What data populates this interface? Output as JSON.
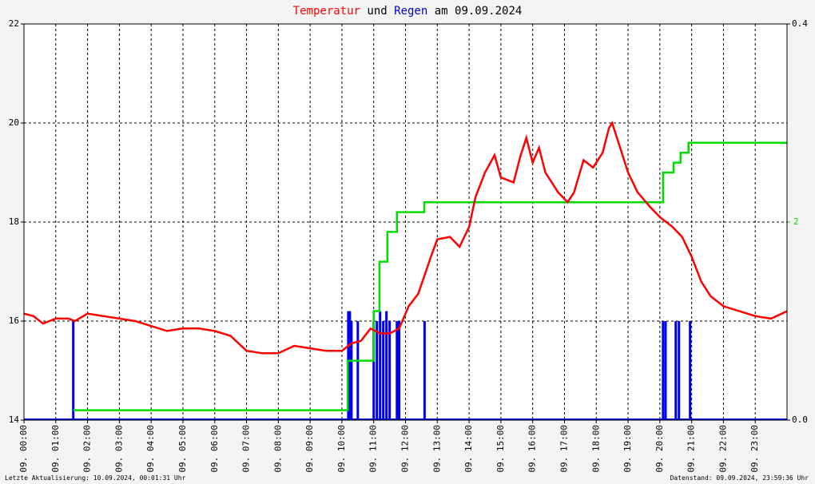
{
  "chart_data": {
    "type": "line",
    "title_middle": "und",
    "title_end": "am 09.09.2024",
    "footer_left": "Letzte Aktualisierung: 10.09.2024, 00:01:31 Uhr",
    "footer_right": "Datenstand: 09.09.2024, 23:59:36 Uhr",
    "xlim": [
      0,
      24
    ],
    "xticks": [
      {
        "value": 0,
        "label": "09. 00:00"
      },
      {
        "value": 1,
        "label": "09. 01:00"
      },
      {
        "value": 2,
        "label": "09. 02:00"
      },
      {
        "value": 3,
        "label": "09. 03:00"
      },
      {
        "value": 4,
        "label": "09. 04:00"
      },
      {
        "value": 5,
        "label": "09. 05:00"
      },
      {
        "value": 6,
        "label": "09. 06:00"
      },
      {
        "value": 7,
        "label": "09. 07:00"
      },
      {
        "value": 8,
        "label": "09. 08:00"
      },
      {
        "value": 9,
        "label": "09. 09:00"
      },
      {
        "value": 10,
        "label": "09. 10:00"
      },
      {
        "value": 11,
        "label": "09. 11:00"
      },
      {
        "value": 12,
        "label": "09. 12:00"
      },
      {
        "value": 13,
        "label": "09. 13:00"
      },
      {
        "value": 14,
        "label": "09. 14:00"
      },
      {
        "value": 15,
        "label": "09. 15:00"
      },
      {
        "value": 16,
        "label": "09. 16:00"
      },
      {
        "value": 17,
        "label": "09. 17:00"
      },
      {
        "value": 18,
        "label": "09. 18:00"
      },
      {
        "value": 19,
        "label": "09. 19:00"
      },
      {
        "value": 20,
        "label": "09. 20:00"
      },
      {
        "value": 21,
        "label": "09. 21:00"
      },
      {
        "value": 22,
        "label": "09. 22:00"
      },
      {
        "value": 23,
        "label": "09. 23:00"
      }
    ],
    "ylim": [
      14,
      22
    ],
    "yticks": [
      14,
      16,
      18,
      20,
      22
    ],
    "y2lim": [
      0,
      0.4
    ],
    "y2ticks": [
      {
        "value": 0,
        "label": "0.0"
      },
      0.4
    ],
    "y3lim": [
      0,
      4
    ],
    "y3ticks": [
      2
    ],
    "y3color": "#00dd00",
    "grid": true,
    "series": [
      {
        "name": "Temperatur",
        "color": "#ff0000",
        "kind": "line",
        "axis": "y",
        "x": [
          0,
          0.3,
          0.6,
          1.0,
          1.4,
          1.6,
          2.0,
          2.5,
          3.0,
          3.5,
          4.0,
          4.5,
          5.0,
          5.5,
          6.0,
          6.5,
          7.0,
          7.5,
          8.0,
          8.5,
          9.0,
          9.5,
          10.0,
          10.3,
          10.6,
          10.9,
          11.2,
          11.5,
          11.8,
          12.1,
          12.4,
          12.8,
          13.0,
          13.4,
          13.7,
          14.0,
          14.2,
          14.5,
          14.8,
          15.0,
          15.4,
          15.6,
          15.8,
          16.0,
          16.2,
          16.4,
          16.8,
          17.1,
          17.3,
          17.6,
          17.9,
          18.2,
          18.4,
          18.5,
          18.7,
          19.0,
          19.3,
          19.7,
          20.0,
          20.4,
          20.7,
          21.0,
          21.3,
          21.6,
          22.0,
          22.5,
          23.0,
          23.5,
          24.0
        ],
        "values": [
          16.15,
          16.1,
          15.95,
          16.05,
          16.05,
          16.0,
          16.15,
          16.1,
          16.05,
          16.0,
          15.9,
          15.8,
          15.85,
          15.85,
          15.8,
          15.7,
          15.4,
          15.35,
          15.35,
          15.5,
          15.45,
          15.4,
          15.4,
          15.55,
          15.6,
          15.85,
          15.75,
          15.75,
          15.85,
          16.3,
          16.55,
          17.3,
          17.65,
          17.7,
          17.5,
          17.9,
          18.5,
          19.0,
          19.35,
          18.9,
          18.8,
          19.3,
          19.7,
          19.2,
          19.5,
          19.0,
          18.6,
          18.4,
          18.6,
          19.25,
          19.1,
          19.4,
          19.9,
          20.0,
          19.6,
          19.0,
          18.6,
          18.3,
          18.1,
          17.9,
          17.7,
          17.3,
          16.8,
          16.5,
          16.3,
          16.2,
          16.1,
          16.05,
          16.2
        ]
      },
      {
        "color": "#00dd00",
        "kind": "step",
        "axis": "y3",
        "x": [
          1.55,
          10.18,
          11.0,
          11.18,
          11.43,
          11.73,
          12.59,
          20.1,
          20.43,
          20.65,
          20.9,
          24
        ],
        "values": [
          0.1,
          0.6,
          1.1,
          1.6,
          1.9,
          2.1,
          2.2,
          2.5,
          2.6,
          2.7,
          2.8,
          2.8
        ]
      },
      {
        "name": "Regen",
        "color": "#0000ee",
        "kind": "bar",
        "axis": "y2",
        "x": [
          1.55,
          10.2,
          10.25,
          10.3,
          10.5,
          11.0,
          11.1,
          11.2,
          11.3,
          11.4,
          11.5,
          11.73,
          11.8,
          12.6,
          20.1,
          20.18,
          20.5,
          20.6,
          20.95
        ],
        "values": [
          0.1,
          0.11,
          0.11,
          0.1,
          0.1,
          0.1,
          0.1,
          0.11,
          0.1,
          0.11,
          0.1,
          0.1,
          0.1,
          0.1,
          0.1,
          0.1,
          0.1,
          0.1,
          0.1
        ]
      }
    ]
  }
}
